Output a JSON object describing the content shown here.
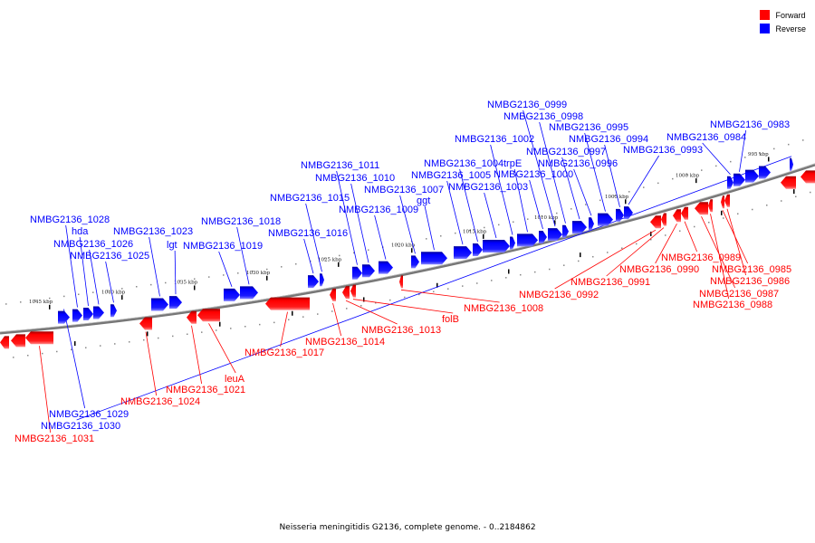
{
  "legend": [
    {
      "label": "Forward",
      "color": "#ff0000"
    },
    {
      "label": "Reverse",
      "color": "#0000ff"
    }
  ],
  "footer": "Neisseria meningitidis G2136, complete genome. - 0..2184862",
  "ticks": [
    "1045 kbp",
    "1040 kbp",
    "1035 kbp",
    "1030 kbp",
    "1025 kbp",
    "1020 kbp",
    "1015 kbp",
    "1010 kbp",
    "1005 kbp",
    "1000 kbp",
    "995 kbp"
  ],
  "colors": {
    "forward": "#ff0000",
    "reverse": "#0000ff",
    "backbone": "#777777"
  },
  "features": [
    {
      "label": "NMBG2136_1029",
      "strand": "reverse"
    },
    {
      "label": "NMBG2136_1028",
      "strand": "reverse"
    },
    {
      "label": "hda",
      "strand": "reverse"
    },
    {
      "label": "NMBG2136_1026",
      "strand": "reverse"
    },
    {
      "label": "NMBG2136_1025",
      "strand": "reverse"
    },
    {
      "label": "NMBG2136_1023",
      "strand": "reverse"
    },
    {
      "label": "lgt",
      "strand": "reverse"
    },
    {
      "label": "NMBG2136_1019",
      "strand": "reverse"
    },
    {
      "label": "NMBG2136_1018",
      "strand": "reverse"
    },
    {
      "label": "NMBG2136_1016",
      "strand": "reverse"
    },
    {
      "label": "NMBG2136_1015",
      "strand": "reverse"
    },
    {
      "label": "NMBG2136_1011",
      "strand": "reverse"
    },
    {
      "label": "NMBG2136_1010",
      "strand": "reverse"
    },
    {
      "label": "NMBG2136_1009",
      "strand": "reverse"
    },
    {
      "label": "NMBG2136_1007",
      "strand": "reverse"
    },
    {
      "label": "ggt",
      "strand": "reverse"
    },
    {
      "label": "NMBG2136_1005",
      "strand": "reverse"
    },
    {
      "label": "NMBG2136_1004",
      "strand": "reverse"
    },
    {
      "label": "NMBG2136_1003",
      "strand": "reverse"
    },
    {
      "label": "NMBG2136_1002",
      "strand": "reverse"
    },
    {
      "label": "trpE",
      "strand": "reverse"
    },
    {
      "label": "NMBG2136_1000",
      "strand": "reverse"
    },
    {
      "label": "NMBG2136_0999",
      "strand": "reverse"
    },
    {
      "label": "NMBG2136_0998",
      "strand": "reverse"
    },
    {
      "label": "NMBG2136_0997",
      "strand": "reverse"
    },
    {
      "label": "NMBG2136_0996",
      "strand": "reverse"
    },
    {
      "label": "NMBG2136_0995",
      "strand": "reverse"
    },
    {
      "label": "NMBG2136_0994",
      "strand": "reverse"
    },
    {
      "label": "NMBG2136_0993",
      "strand": "reverse"
    },
    {
      "label": "NMBG2136_0984",
      "strand": "reverse"
    },
    {
      "label": "NMBG2136_0983",
      "strand": "reverse"
    },
    {
      "label": "NMBG2136_1030",
      "strand": "reverse"
    },
    {
      "label": "NMBG2136_1031",
      "strand": "forward"
    },
    {
      "label": "NMBG2136_1024",
      "strand": "forward"
    },
    {
      "label": "NMBG2136_1021",
      "strand": "forward"
    },
    {
      "label": "leuA",
      "strand": "forward"
    },
    {
      "label": "NMBG2136_1017",
      "strand": "forward"
    },
    {
      "label": "NMBG2136_1014",
      "strand": "forward"
    },
    {
      "label": "NMBG2136_1013",
      "strand": "forward"
    },
    {
      "label": "folB",
      "strand": "forward"
    },
    {
      "label": "NMBG2136_1008",
      "strand": "forward"
    },
    {
      "label": "NMBG2136_0992",
      "strand": "forward"
    },
    {
      "label": "NMBG2136_0991",
      "strand": "forward"
    },
    {
      "label": "NMBG2136_0990",
      "strand": "forward"
    },
    {
      "label": "NMBG2136_0989",
      "strand": "forward"
    },
    {
      "label": "NMBG2136_0985",
      "strand": "forward"
    },
    {
      "label": "NMBG2136_0986",
      "strand": "forward"
    },
    {
      "label": "NMBG2136_0987",
      "strand": "forward"
    },
    {
      "label": "NMBG2136_0988",
      "strand": "forward"
    }
  ]
}
